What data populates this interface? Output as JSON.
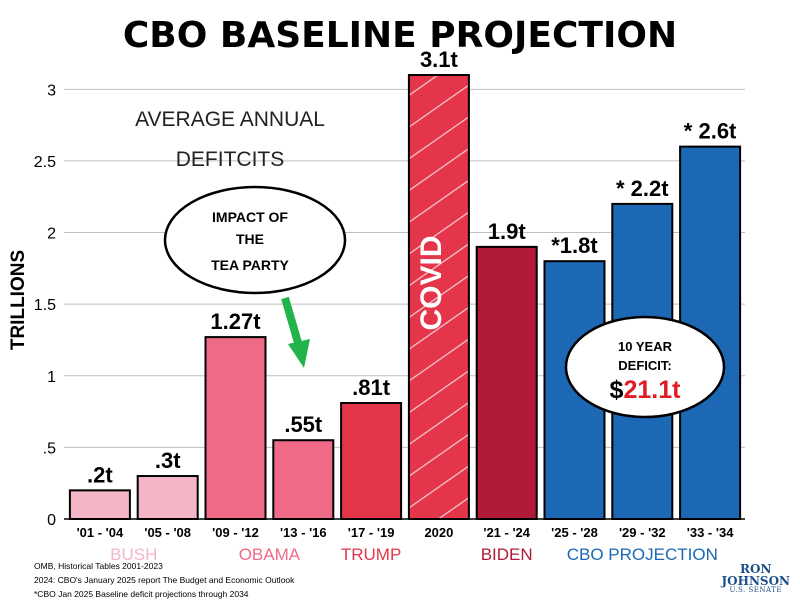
{
  "title": "CBO BASELINE PROJECTION",
  "annotations": {
    "avg_line1": "AVERAGE ANNUAL",
    "avg_line2": "DEFITCITS",
    "tea_line1": "IMPACT OF",
    "tea_line2": "THE",
    "tea_line3": "TEA PARTY",
    "deficit_line1": "10 YEAR",
    "deficit_line2": "DEFICIT:",
    "deficit_dollar": "$",
    "deficit_value": "21.1t",
    "covid": "COVID"
  },
  "sources": [
    "OMB, Historical Tables 2001-2023",
    "2024: CBO's January 2025 report The Budget and Economic Outlook",
    "*CBO Jan 2025 Baseline deficit projections through 2034"
  ],
  "logo": {
    "line1": "RON",
    "line2": "JOHNSON",
    "line3": "U.S. SENATE"
  },
  "colors": {
    "bush": "#f4b6c6",
    "obama": "#ef6a86",
    "trump": "#e4354a",
    "biden": "#b01a38",
    "cbo": "#1c68b4"
  },
  "chart_data": {
    "type": "bar",
    "ylabel": "TRILLIONS",
    "ylim": [
      0,
      3.1
    ],
    "yticks": [
      {
        "v": 0,
        "label": "0"
      },
      {
        "v": 0.5,
        "label": ".5"
      },
      {
        "v": 1,
        "label": "1"
      },
      {
        "v": 1.5,
        "label": "1.5"
      },
      {
        "v": 2,
        "label": "2"
      },
      {
        "v": 2.5,
        "label": "2.5"
      },
      {
        "v": 3,
        "label": "3"
      }
    ],
    "grid": true,
    "categories": [
      "'01 - '04",
      "'05 - '08",
      "'09 - '12",
      "'13 - '16",
      "'17 - '19",
      "2020",
      "'21 - '24",
      "'25 - '28",
      "'29 - '32",
      "'33 - '34"
    ],
    "values": [
      0.2,
      0.3,
      1.27,
      0.55,
      0.81,
      3.1,
      1.9,
      1.8,
      2.2,
      2.6
    ],
    "data_labels": [
      ".2t",
      ".3t",
      "1.27t",
      ".55t",
      ".81t",
      "3.1t",
      "1.9t",
      "*1.8t",
      "* 2.2t",
      "* 2.6t"
    ],
    "bar_groups": [
      "bush",
      "bush",
      "obama",
      "obama",
      "trump",
      "trump",
      "biden",
      "cbo",
      "cbo",
      "cbo"
    ],
    "groups": [
      {
        "key": "bush",
        "name": "BUSH",
        "from": 0,
        "to": 1
      },
      {
        "key": "obama",
        "name": "OBAMA",
        "from": 2,
        "to": 3
      },
      {
        "key": "trump",
        "name": "TRUMP",
        "from": 4,
        "to": 4
      },
      {
        "key": "biden",
        "name": "BIDEN",
        "from": 6,
        "to": 6
      },
      {
        "key": "cbo",
        "name": "CBO PROJECTION",
        "from": 7,
        "to": 9
      }
    ]
  }
}
